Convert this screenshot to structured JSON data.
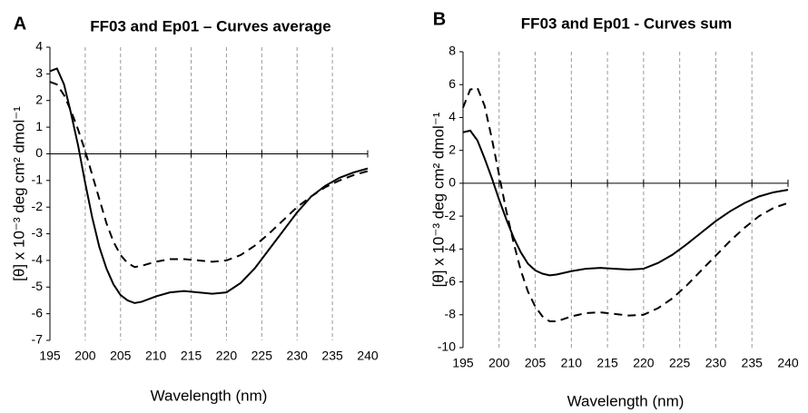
{
  "chart_data": [
    {
      "type": "line",
      "panel_label": "A",
      "title": "FF03 and Ep01 – Curves average",
      "x_label": "Wavelength (nm)",
      "y_label": "[θ] x 10⁻³ deg cm² dmol⁻¹",
      "x": [
        195,
        196,
        197,
        198,
        199,
        200,
        201,
        202,
        203,
        204,
        205,
        206,
        207,
        208,
        210,
        212,
        214,
        216,
        218,
        220,
        222,
        224,
        226,
        228,
        230,
        232,
        234,
        236,
        238,
        240
      ],
      "series": [
        {
          "color": "#000000",
          "line_style": "solid",
          "values": [
            3.1,
            3.2,
            2.6,
            1.5,
            0.3,
            -1.1,
            -2.4,
            -3.5,
            -4.3,
            -4.9,
            -5.3,
            -5.5,
            -5.6,
            -5.55,
            -5.35,
            -5.2,
            -5.15,
            -5.2,
            -5.25,
            -5.2,
            -4.85,
            -4.3,
            -3.6,
            -2.9,
            -2.2,
            -1.6,
            -1.2,
            -0.9,
            -0.7,
            -0.55
          ]
        },
        {
          "color": "#000000",
          "line_style": "dashed",
          "values": [
            2.7,
            2.6,
            2.2,
            1.6,
            0.9,
            0.1,
            -0.8,
            -1.7,
            -2.6,
            -3.3,
            -3.8,
            -4.1,
            -4.25,
            -4.2,
            -4.05,
            -3.95,
            -3.95,
            -4.0,
            -4.05,
            -4.0,
            -3.8,
            -3.45,
            -3.0,
            -2.5,
            -2.0,
            -1.6,
            -1.25,
            -1.0,
            -0.8,
            -0.65
          ]
        }
      ],
      "xlim": [
        195,
        240
      ],
      "xticks": [
        195,
        200,
        205,
        210,
        215,
        220,
        225,
        230,
        235,
        240
      ],
      "ylim": [
        -7,
        4
      ],
      "yticks": [
        -7,
        -6,
        -5,
        -4,
        -3,
        -2,
        -1,
        0,
        1,
        2,
        3,
        4
      ],
      "grid": "x"
    },
    {
      "type": "line",
      "panel_label": "B",
      "title": "FF03 and Ep01 - Curves sum",
      "x_label": "Wavelength (nm)",
      "y_label": "[θ] x 10⁻³ deg cm² dmol⁻¹",
      "x": [
        195,
        196,
        197,
        198,
        199,
        200,
        201,
        202,
        203,
        204,
        205,
        206,
        207,
        208,
        210,
        212,
        214,
        216,
        218,
        220,
        222,
        224,
        226,
        228,
        230,
        232,
        234,
        236,
        238,
        240
      ],
      "series": [
        {
          "color": "#000000",
          "line_style": "solid",
          "values": [
            3.1,
            3.2,
            2.6,
            1.5,
            0.3,
            -1.0,
            -2.2,
            -3.3,
            -4.2,
            -4.9,
            -5.3,
            -5.5,
            -5.6,
            -5.55,
            -5.35,
            -5.2,
            -5.15,
            -5.2,
            -5.25,
            -5.2,
            -4.85,
            -4.35,
            -3.7,
            -3.0,
            -2.3,
            -1.7,
            -1.2,
            -0.8,
            -0.55,
            -0.4
          ]
        },
        {
          "color": "#000000",
          "line_style": "dashed",
          "values": [
            4.6,
            5.7,
            5.8,
            4.7,
            2.7,
            0.5,
            -1.7,
            -3.6,
            -5.3,
            -6.6,
            -7.5,
            -8.1,
            -8.4,
            -8.4,
            -8.1,
            -7.9,
            -7.85,
            -7.95,
            -8.05,
            -8.0,
            -7.6,
            -7.0,
            -6.2,
            -5.3,
            -4.4,
            -3.5,
            -2.7,
            -2.0,
            -1.5,
            -1.2
          ]
        }
      ],
      "xlim": [
        195,
        240
      ],
      "xticks": [
        195,
        200,
        205,
        210,
        215,
        220,
        225,
        230,
        235,
        240
      ],
      "ylim": [
        -10,
        8
      ],
      "yticks": [
        -10,
        -8,
        -6,
        -4,
        -2,
        0,
        2,
        4,
        6,
        8
      ],
      "grid": "x"
    }
  ]
}
